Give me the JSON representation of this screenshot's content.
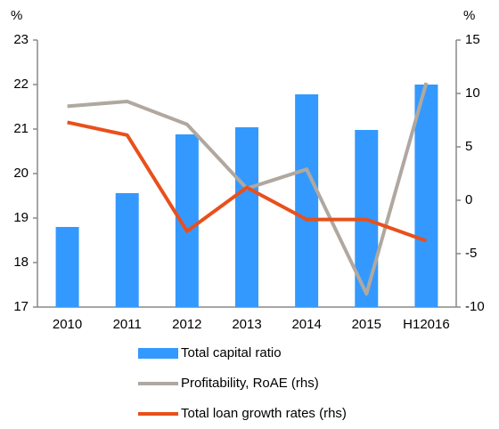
{
  "chart_data": {
    "type": "bar_line",
    "y_label": "%",
    "y2_label": "%",
    "categories": [
      "2010",
      "2011",
      "2012",
      "2013",
      "2014",
      "2015",
      "H12016"
    ],
    "series": [
      {
        "name": "Total capital  ratio",
        "color": "#3399ff",
        "type": "bar",
        "values": [
          18.8,
          19.56,
          20.88,
          21.04,
          21.78,
          20.98,
          22.0
        ]
      },
      {
        "name": "Profitability, RoAE (rhs)",
        "color": "#b0a8a0",
        "type": "line",
        "axis": "y2",
        "values": [
          8.8,
          9.25,
          7.1,
          1.1,
          2.9,
          -8.75,
          11.0
        ]
      },
      {
        "name": "Total loan growth rates (rhs)",
        "color": "#e8501c",
        "type": "line",
        "axis": "y2",
        "values": [
          7.3,
          6.1,
          -2.9,
          1.2,
          -1.8,
          -1.8,
          -3.8
        ]
      }
    ],
    "ylim": [
      17,
      23
    ],
    "yticks": [
      17,
      18,
      19,
      20,
      21,
      22,
      23
    ],
    "y2lim": [
      -10,
      15
    ],
    "y2ticks": [
      -10,
      -5,
      0,
      5,
      10,
      15
    ],
    "legend": "bottom"
  }
}
